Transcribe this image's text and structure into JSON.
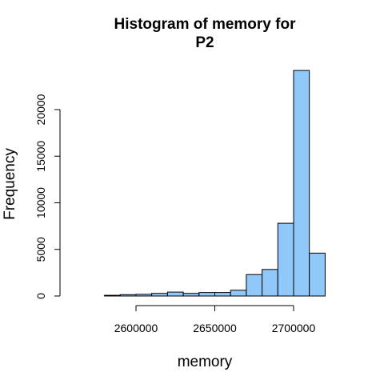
{
  "chart_data": {
    "type": "bar",
    "title_lines": [
      "Histogram of memory for",
      "P2"
    ],
    "xlabel": "memory",
    "ylabel": "Frequency",
    "bar_color": "#91C8FA",
    "border_color": "#000000",
    "xlim": [
      2560000,
      2730000
    ],
    "ylim": [
      0,
      24000
    ],
    "x_ticks": [
      2600000,
      2650000,
      2700000
    ],
    "x_tick_labels": [
      "2600000",
      "2650000",
      "2700000"
    ],
    "y_ticks": [
      0,
      5000,
      10000,
      15000,
      20000
    ],
    "y_tick_labels": [
      "0",
      "5000",
      "10000",
      "15000",
      "20000"
    ],
    "bins": [
      {
        "start": 2580000,
        "end": 2590000,
        "count": 80
      },
      {
        "start": 2590000,
        "end": 2600000,
        "count": 150
      },
      {
        "start": 2600000,
        "end": 2610000,
        "count": 180
      },
      {
        "start": 2610000,
        "end": 2620000,
        "count": 280
      },
      {
        "start": 2620000,
        "end": 2630000,
        "count": 420
      },
      {
        "start": 2630000,
        "end": 2640000,
        "count": 280
      },
      {
        "start": 2640000,
        "end": 2650000,
        "count": 380
      },
      {
        "start": 2650000,
        "end": 2660000,
        "count": 380
      },
      {
        "start": 2660000,
        "end": 2670000,
        "count": 620
      },
      {
        "start": 2670000,
        "end": 2680000,
        "count": 2300
      },
      {
        "start": 2680000,
        "end": 2690000,
        "count": 2850
      },
      {
        "start": 2690000,
        "end": 2700000,
        "count": 7800
      },
      {
        "start": 2700000,
        "end": 2710000,
        "count": 24200
      },
      {
        "start": 2710000,
        "end": 2720000,
        "count": 4600
      }
    ]
  }
}
